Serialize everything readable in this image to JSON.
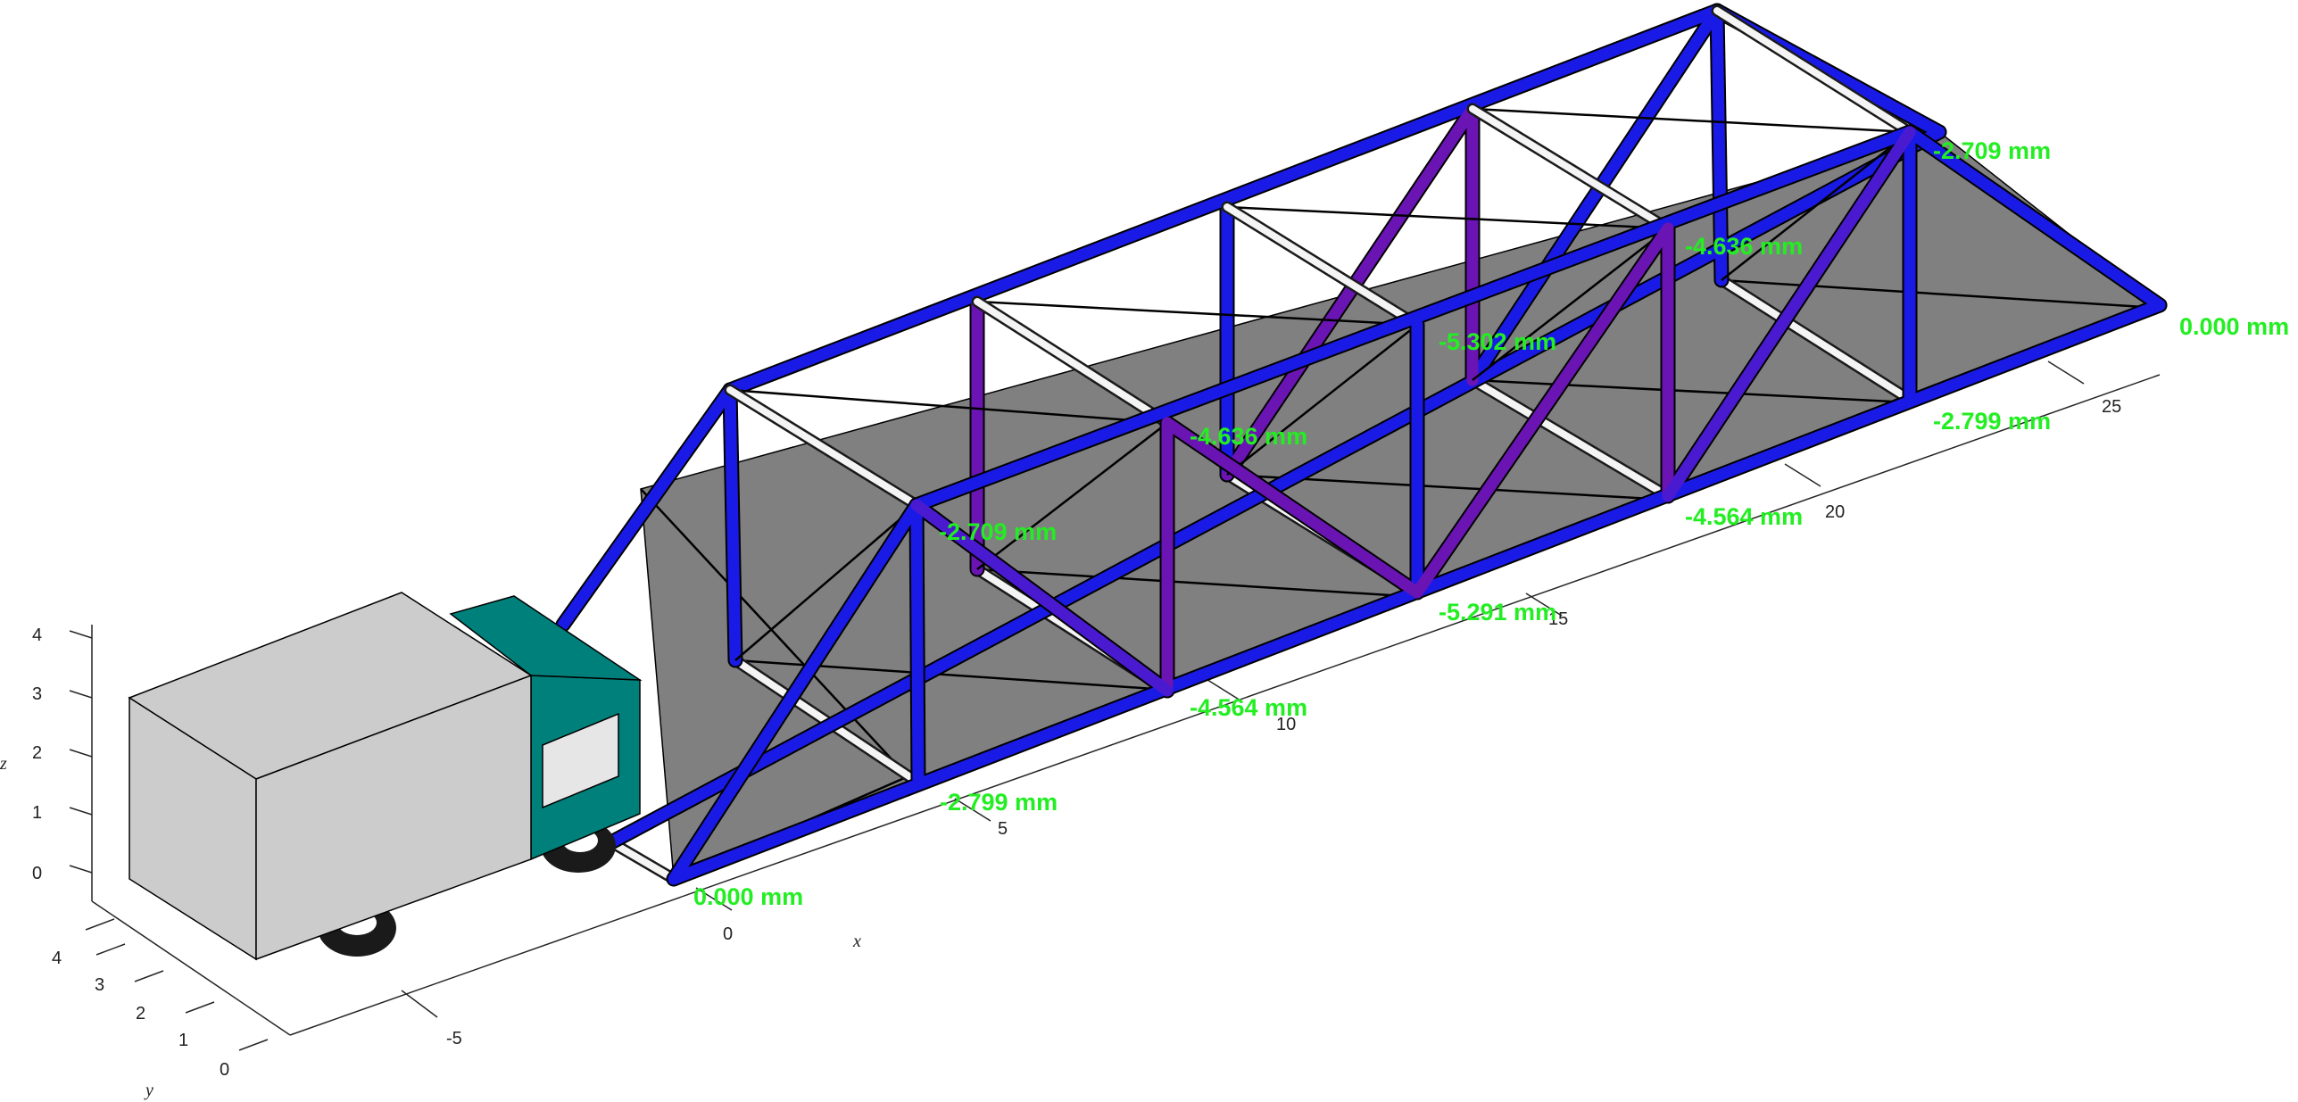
{
  "axes": {
    "x": {
      "label": "x",
      "ticks": [
        "-5",
        "0",
        "5",
        "10",
        "15",
        "20",
        "25"
      ]
    },
    "y": {
      "label": "y",
      "ticks": [
        "0",
        "1",
        "2",
        "3",
        "4"
      ]
    },
    "z": {
      "label": "z",
      "ticks": [
        "0",
        "1",
        "2",
        "3",
        "4"
      ]
    }
  },
  "deflections": {
    "near_bottom": [
      "0.000 mm",
      "-2.799 mm",
      "-4.564 mm",
      "-5.291 mm",
      "-4.564 mm",
      "-2.799 mm",
      "0.000 mm"
    ],
    "top_chord": [
      "-2.709 mm",
      "-4.636 mm",
      "-5.302 mm",
      "-4.636 mm",
      "-2.709 mm"
    ]
  },
  "colors": {
    "members": "#1a1ae6",
    "members_stressed": "#6a14b4",
    "deck": "#808080",
    "labels": "#22ee22",
    "truck_box": "#cccccc",
    "truck_cab": "#00807a",
    "wheels": "#1a1a1a"
  }
}
